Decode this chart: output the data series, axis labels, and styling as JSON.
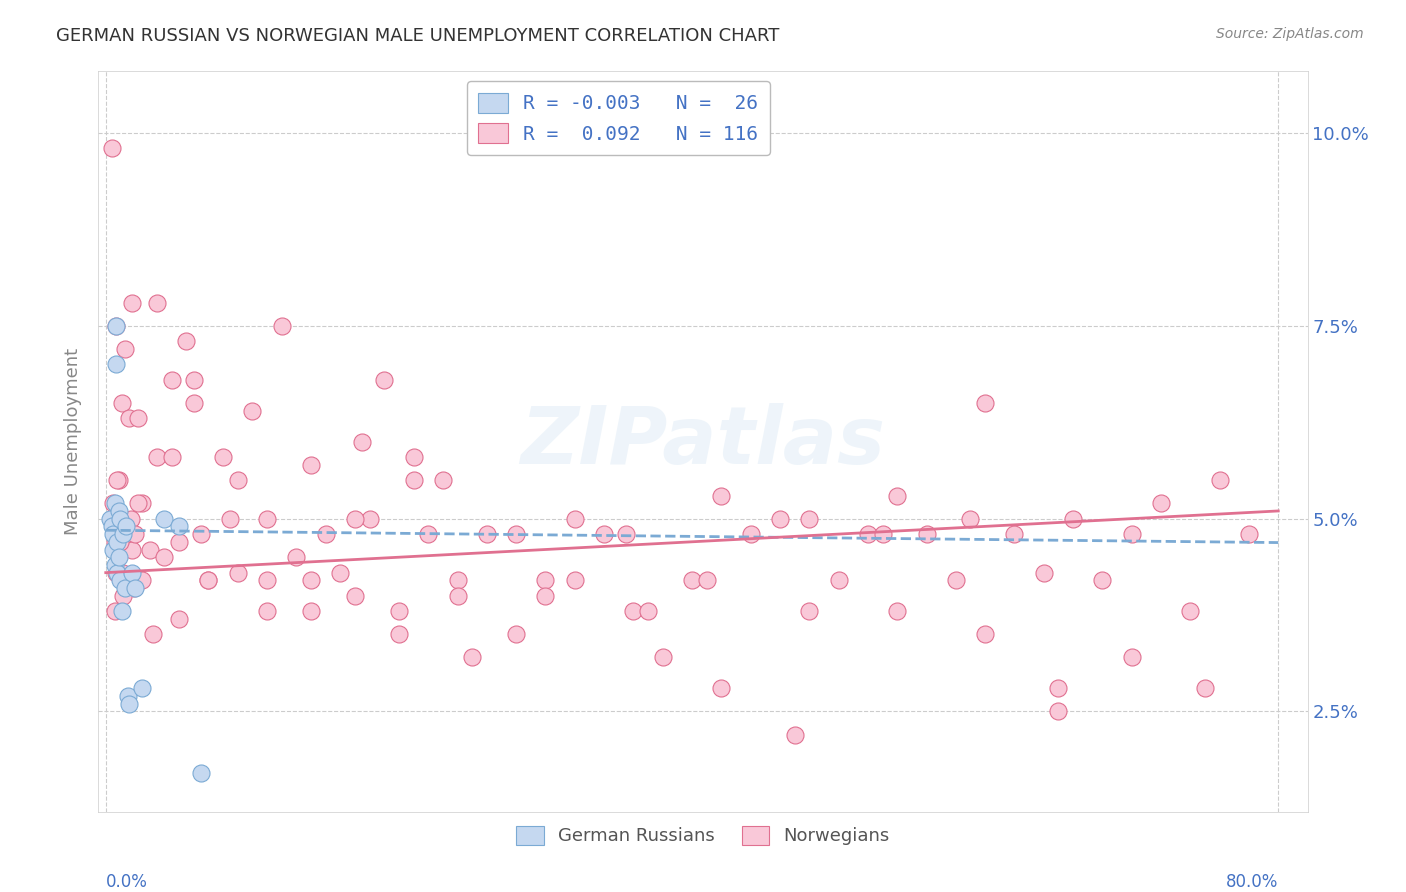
{
  "title": "GERMAN RUSSIAN VS NORWEGIAN MALE UNEMPLOYMENT CORRELATION CHART",
  "source": "Source: ZipAtlas.com",
  "ylabel": "Male Unemployment",
  "ytick_labels": [
    "2.5%",
    "5.0%",
    "7.5%",
    "10.0%"
  ],
  "ytick_values": [
    0.025,
    0.05,
    0.075,
    0.1
  ],
  "xtick_labels": [
    "0.0%",
    "80.0%"
  ],
  "xtick_values": [
    0.0,
    0.8
  ],
  "xlim": [
    -0.005,
    0.82
  ],
  "ylim": [
    0.012,
    0.108
  ],
  "watermark": "ZIPatlas",
  "color_blue_fill": "#c5d8f0",
  "color_blue_edge": "#7baad4",
  "color_pink_fill": "#f9c8d8",
  "color_pink_edge": "#e07090",
  "color_text": "#4472c4",
  "color_ylabel": "#888888",
  "trendline_blue": "#7baad4",
  "trendline_pink": "#e07090",
  "grid_color": "#cccccc",
  "background_color": "#ffffff",
  "gr_x": [
    0.003,
    0.004,
    0.005,
    0.005,
    0.006,
    0.006,
    0.007,
    0.007,
    0.008,
    0.008,
    0.009,
    0.009,
    0.01,
    0.01,
    0.011,
    0.012,
    0.013,
    0.014,
    0.015,
    0.016,
    0.018,
    0.02,
    0.025,
    0.04,
    0.05,
    0.065
  ],
  "gr_y": [
    0.05,
    0.049,
    0.048,
    0.046,
    0.052,
    0.044,
    0.075,
    0.07,
    0.047,
    0.043,
    0.051,
    0.045,
    0.042,
    0.05,
    0.038,
    0.048,
    0.041,
    0.049,
    0.027,
    0.026,
    0.043,
    0.041,
    0.028,
    0.05,
    0.049,
    0.017
  ],
  "nor_x": [
    0.004,
    0.005,
    0.006,
    0.007,
    0.007,
    0.008,
    0.009,
    0.01,
    0.011,
    0.012,
    0.013,
    0.014,
    0.015,
    0.016,
    0.017,
    0.018,
    0.019,
    0.02,
    0.022,
    0.025,
    0.03,
    0.035,
    0.04,
    0.045,
    0.05,
    0.055,
    0.06,
    0.065,
    0.07,
    0.08,
    0.09,
    0.1,
    0.11,
    0.12,
    0.13,
    0.14,
    0.15,
    0.16,
    0.17,
    0.18,
    0.19,
    0.2,
    0.21,
    0.22,
    0.23,
    0.24,
    0.26,
    0.28,
    0.3,
    0.32,
    0.34,
    0.36,
    0.38,
    0.4,
    0.42,
    0.44,
    0.46,
    0.48,
    0.5,
    0.52,
    0.54,
    0.56,
    0.58,
    0.6,
    0.62,
    0.64,
    0.66,
    0.68,
    0.7,
    0.72,
    0.74,
    0.76,
    0.78,
    0.008,
    0.012,
    0.018,
    0.025,
    0.035,
    0.05,
    0.07,
    0.09,
    0.11,
    0.14,
    0.17,
    0.2,
    0.24,
    0.28,
    0.32,
    0.37,
    0.42,
    0.48,
    0.54,
    0.6,
    0.65,
    0.7,
    0.75,
    0.006,
    0.01,
    0.015,
    0.022,
    0.032,
    0.045,
    0.06,
    0.085,
    0.11,
    0.14,
    0.175,
    0.21,
    0.25,
    0.3,
    0.355,
    0.41,
    0.47,
    0.53,
    0.59,
    0.65
  ],
  "nor_y": [
    0.098,
    0.052,
    0.047,
    0.075,
    0.043,
    0.048,
    0.055,
    0.046,
    0.065,
    0.043,
    0.072,
    0.048,
    0.047,
    0.063,
    0.05,
    0.046,
    0.041,
    0.048,
    0.063,
    0.052,
    0.046,
    0.058,
    0.045,
    0.068,
    0.047,
    0.073,
    0.065,
    0.048,
    0.042,
    0.058,
    0.043,
    0.064,
    0.05,
    0.075,
    0.045,
    0.057,
    0.048,
    0.043,
    0.04,
    0.05,
    0.068,
    0.038,
    0.058,
    0.048,
    0.055,
    0.042,
    0.048,
    0.035,
    0.042,
    0.05,
    0.048,
    0.038,
    0.032,
    0.042,
    0.053,
    0.048,
    0.05,
    0.038,
    0.042,
    0.048,
    0.053,
    0.048,
    0.042,
    0.065,
    0.048,
    0.043,
    0.05,
    0.042,
    0.048,
    0.052,
    0.038,
    0.055,
    0.048,
    0.055,
    0.04,
    0.078,
    0.042,
    0.078,
    0.037,
    0.042,
    0.055,
    0.038,
    0.042,
    0.05,
    0.035,
    0.04,
    0.048,
    0.042,
    0.038,
    0.028,
    0.05,
    0.038,
    0.035,
    0.028,
    0.032,
    0.028,
    0.038,
    0.047,
    0.042,
    0.052,
    0.035,
    0.058,
    0.068,
    0.05,
    0.042,
    0.038,
    0.06,
    0.055,
    0.032,
    0.04,
    0.048,
    0.042,
    0.022,
    0.048,
    0.05,
    0.025
  ]
}
